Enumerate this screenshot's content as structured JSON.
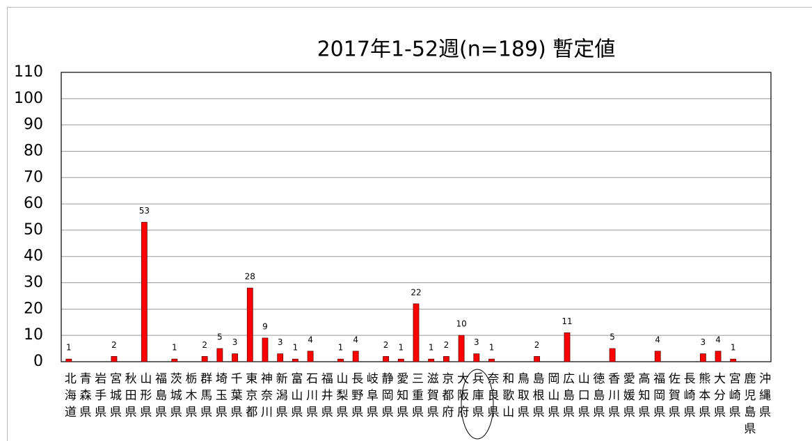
{
  "chart_data": {
    "type": "bar",
    "title": "2017年1-52週(n=189) 暫定値",
    "categories": [
      "北海道",
      "青森県",
      "岩手県",
      "宮城県",
      "秋田県",
      "山形県",
      "福島県",
      "茨城県",
      "栃木県",
      "群馬県",
      "埼玉県",
      "千葉県",
      "東京都",
      "神奈川",
      "新潟県",
      "富山県",
      "石川県",
      "福井県",
      "山梨県",
      "長野県",
      "岐阜県",
      "静岡県",
      "愛知県",
      "三重県",
      "滋賀県",
      "京都府",
      "大阪府",
      "兵庫県",
      "奈良県",
      "和歌山",
      "鳥取県",
      "島根県",
      "岡山県",
      "広島県",
      "山口県",
      "徳島県",
      "香川県",
      "愛媛県",
      "高知県",
      "福岡県",
      "佐賀県",
      "長崎県",
      "熊本県",
      "大分県",
      "宮崎県",
      "鹿児島県",
      "沖縄県"
    ],
    "values": [
      1,
      0,
      0,
      2,
      0,
      53,
      0,
      1,
      0,
      2,
      5,
      3,
      28,
      9,
      3,
      1,
      4,
      0,
      1,
      4,
      0,
      2,
      1,
      22,
      1,
      2,
      10,
      3,
      1,
      0,
      0,
      2,
      0,
      11,
      0,
      0,
      5,
      0,
      0,
      4,
      0,
      0,
      3,
      4,
      1,
      0,
      0
    ],
    "color": "#ff0000",
    "ylim": [
      0,
      110
    ],
    "yticks": [
      0,
      10,
      20,
      30,
      40,
      50,
      60,
      70,
      80,
      90,
      100,
      110
    ],
    "grid": true
  }
}
